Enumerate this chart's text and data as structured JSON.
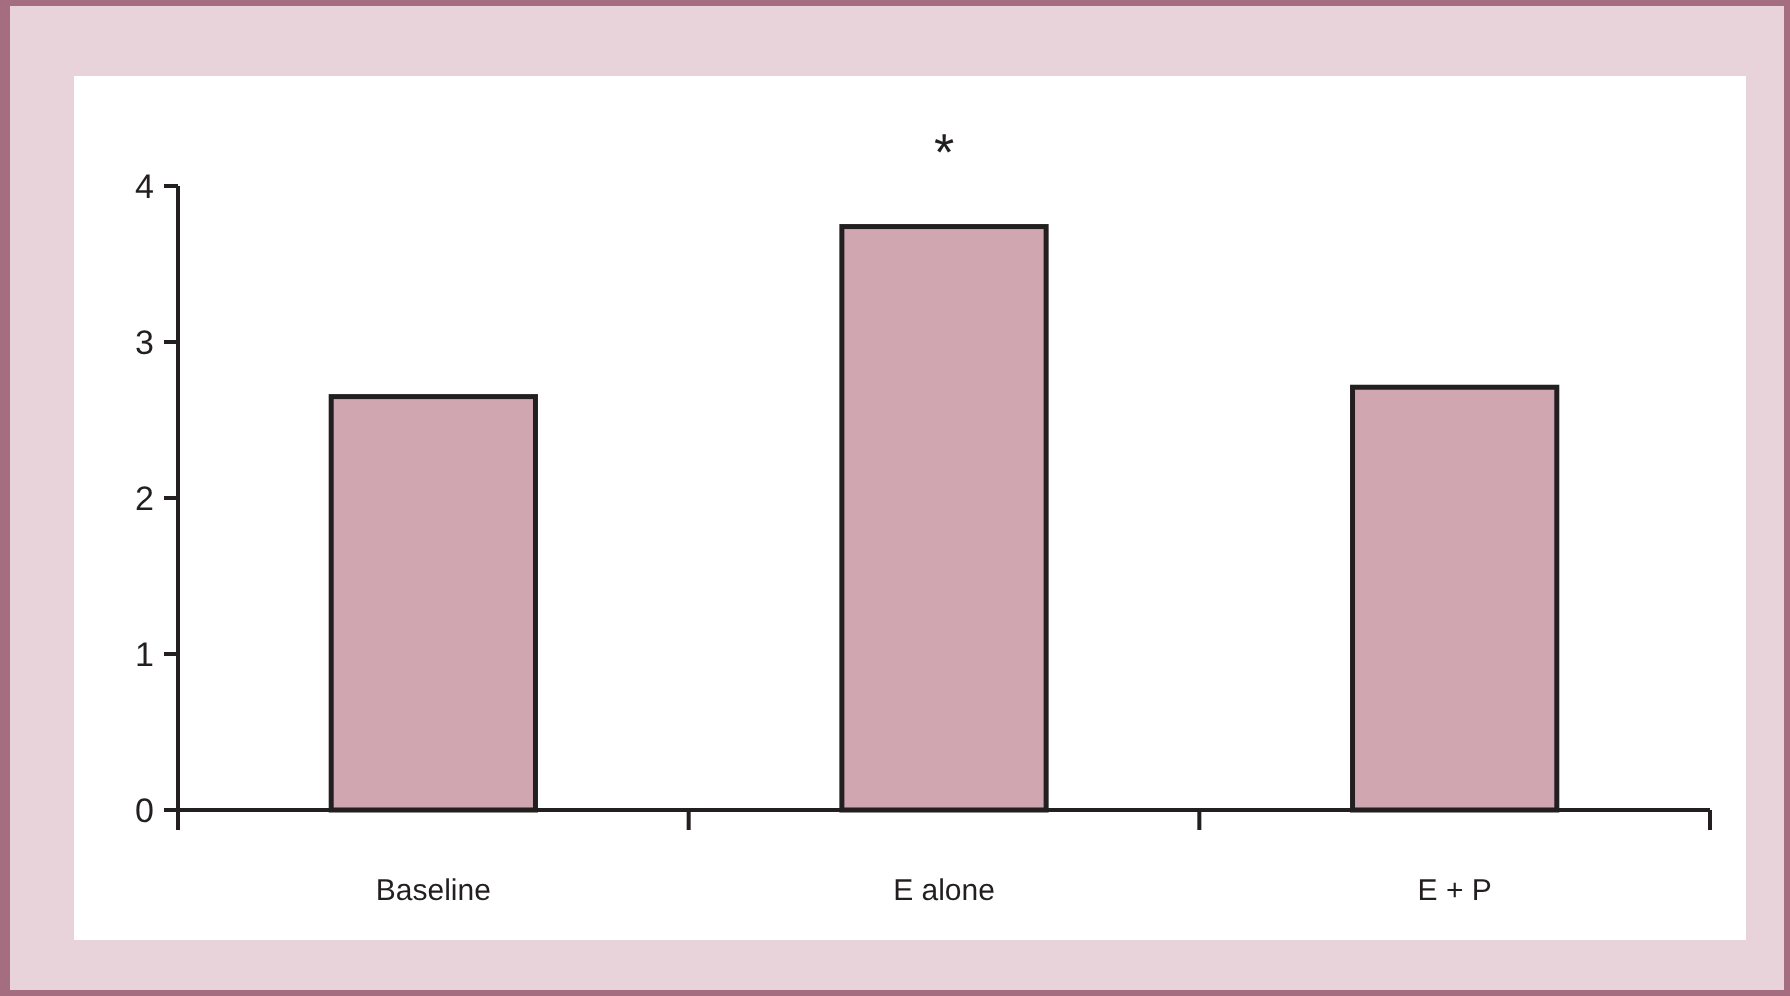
{
  "chart_data": {
    "type": "bar",
    "categories": [
      "Baseline",
      "E alone",
      "E + P"
    ],
    "values": [
      2.65,
      3.74,
      2.71
    ],
    "color": "#d0a6b1",
    "ylim": [
      0,
      4
    ],
    "yticks": [
      0,
      1,
      2,
      3,
      4
    ],
    "grid": false,
    "annotations": [
      "*"
    ]
  }
}
